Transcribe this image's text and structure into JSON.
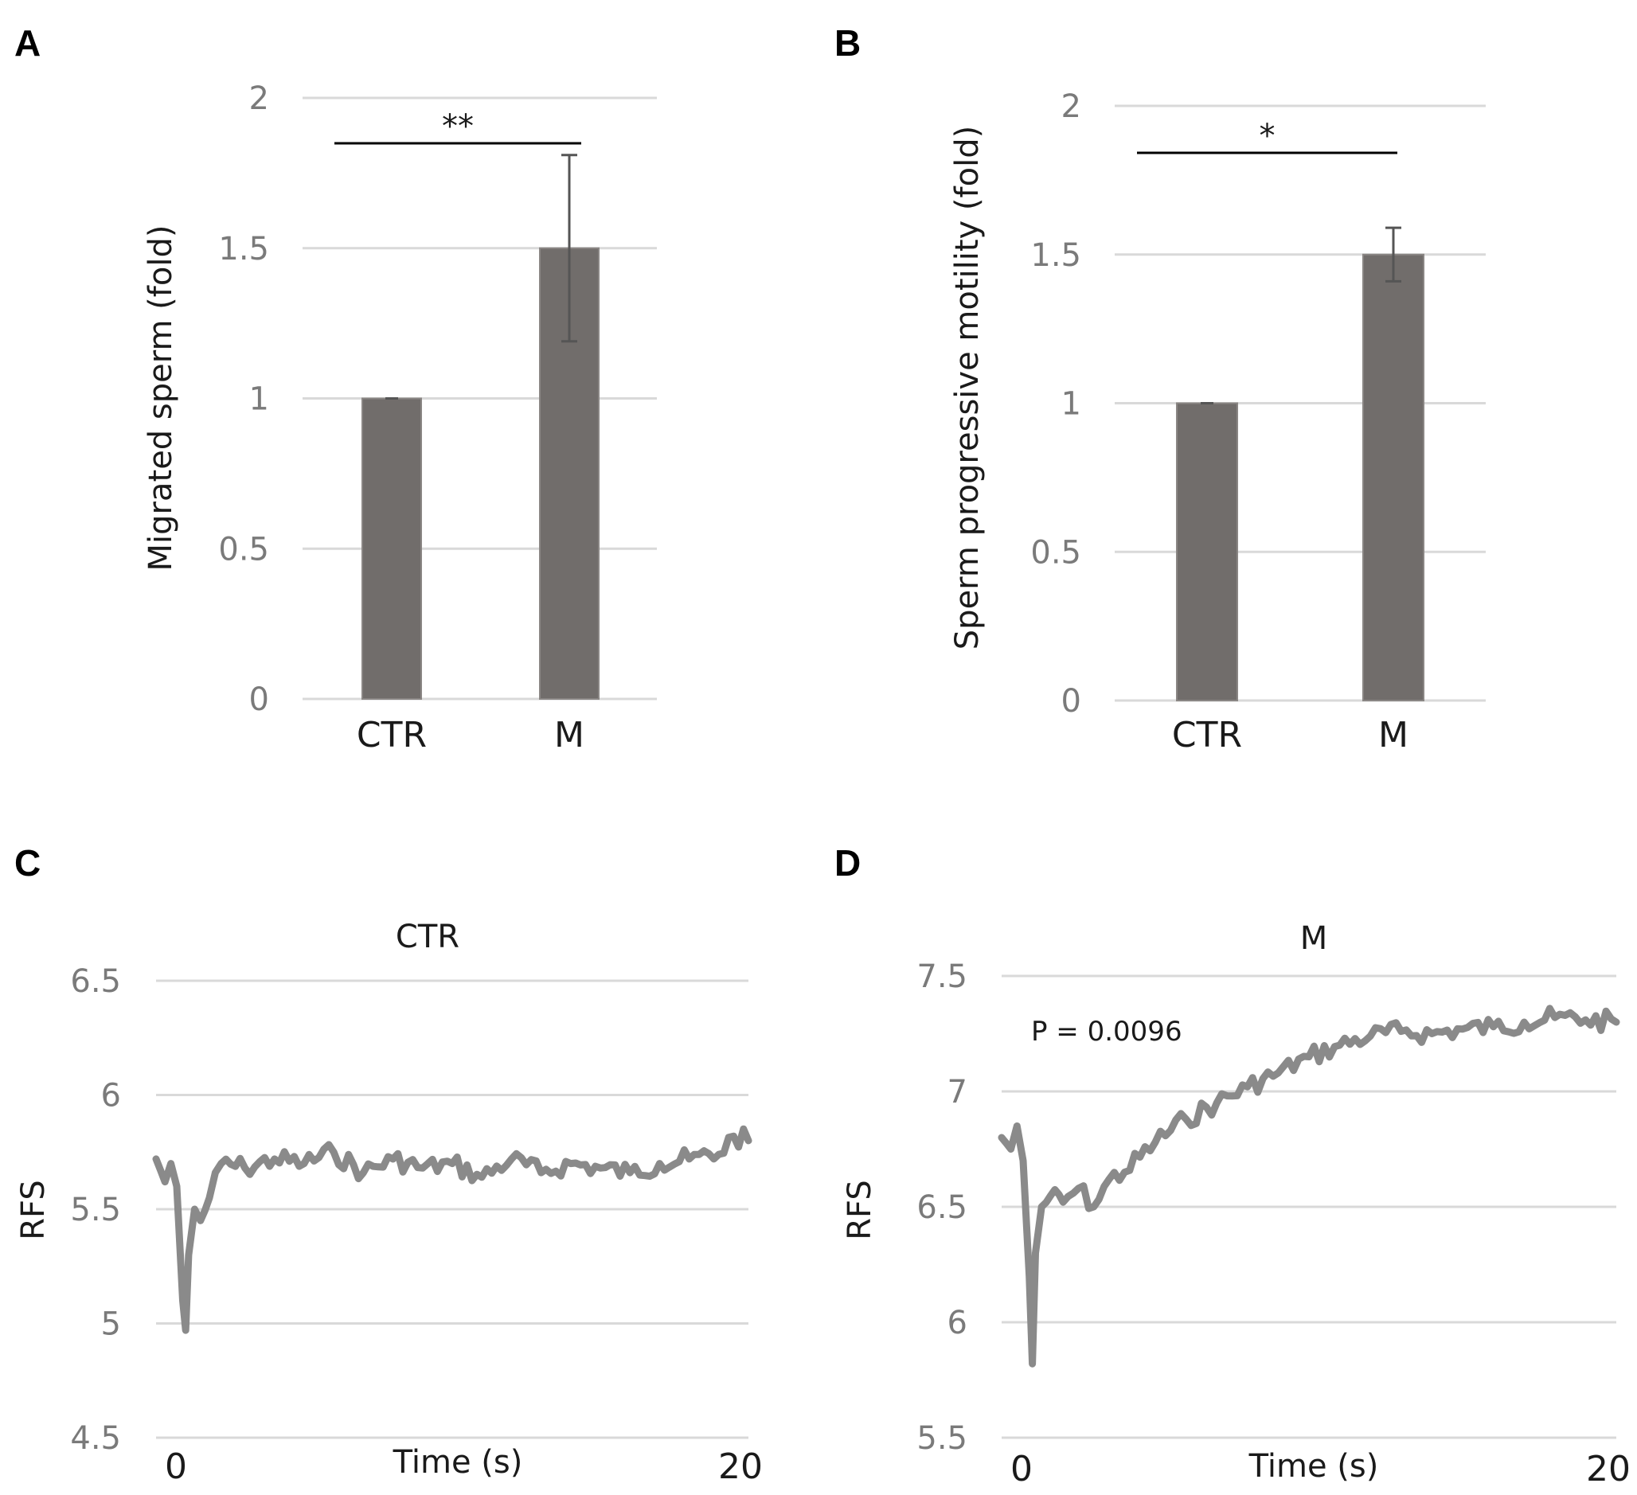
{
  "chart_data": [
    {
      "panel": "A",
      "type": "bar",
      "categories": [
        "CTR",
        "M"
      ],
      "values": [
        1.0,
        1.5
      ],
      "errors": [
        0.0,
        0.31
      ],
      "ylabel": "Migrated sperm (fold)",
      "ylim": [
        0,
        2
      ],
      "yticks": [
        "0",
        "0.5",
        "1",
        "1.5",
        "2"
      ],
      "significance": "**",
      "grid": true,
      "colors": {
        "bar": "#716d6b",
        "error": "#555555",
        "grid": "#d9d9d9"
      }
    },
    {
      "panel": "B",
      "type": "bar",
      "categories": [
        "CTR",
        "M"
      ],
      "values": [
        1.0,
        1.5
      ],
      "errors": [
        0.0,
        0.09
      ],
      "ylabel": "Sperm progressive motility (fold)",
      "ylim": [
        0,
        2
      ],
      "yticks": [
        "0",
        "0.5",
        "1",
        "1.5",
        "2"
      ],
      "significance": "*",
      "grid": true,
      "colors": {
        "bar": "#716d6b",
        "error": "#555555",
        "grid": "#d9d9d9"
      }
    },
    {
      "panel": "C",
      "type": "line",
      "title": "CTR",
      "xlabel": "Time (s)",
      "ylabel": "RFS",
      "xlim": [
        0,
        20
      ],
      "ylim": [
        4.5,
        6.5
      ],
      "yticks": [
        "4.5",
        "5",
        "5.5",
        "6",
        "6.5"
      ],
      "xticks": [
        "0",
        "20"
      ],
      "x": [
        0,
        0.3,
        0.5,
        0.7,
        0.9,
        1.0,
        1.1,
        1.3,
        1.5,
        1.8,
        2.2,
        3,
        4,
        5,
        6,
        7,
        8,
        9,
        10,
        11,
        12,
        13,
        14,
        15,
        16,
        17,
        18,
        19,
        19.5,
        20
      ],
      "y": [
        5.72,
        5.62,
        5.7,
        5.6,
        5.1,
        4.97,
        5.3,
        5.5,
        5.45,
        5.55,
        5.7,
        5.68,
        5.72,
        5.7,
        5.75,
        5.66,
        5.72,
        5.68,
        5.7,
        5.64,
        5.72,
        5.66,
        5.7,
        5.68,
        5.66,
        5.7,
        5.72,
        5.74,
        5.82,
        5.8
      ],
      "grid": true,
      "colors": {
        "line": "#8a8a8a",
        "grid": "#d9d9d9"
      }
    },
    {
      "panel": "D",
      "type": "line",
      "title": "M",
      "xlabel": "Time (s)",
      "ylabel": "RFS",
      "xlim": [
        0,
        20
      ],
      "ylim": [
        5.5,
        7.5
      ],
      "yticks": [
        "5.5",
        "6",
        "6.5",
        "7",
        "7.5"
      ],
      "xticks": [
        "0",
        "20"
      ],
      "annotation": "P = 0.0096",
      "x": [
        0,
        0.3,
        0.5,
        0.7,
        0.9,
        1.0,
        1.1,
        1.3,
        1.6,
        2,
        2.5,
        3,
        3.5,
        4,
        5,
        6,
        7,
        8,
        9,
        10,
        11,
        12,
        13,
        14,
        15,
        16,
        17,
        18,
        19,
        20
      ],
      "y": [
        6.8,
        6.75,
        6.85,
        6.7,
        6.2,
        5.82,
        6.3,
        6.5,
        6.55,
        6.52,
        6.58,
        6.5,
        6.62,
        6.65,
        6.78,
        6.88,
        6.95,
        7.02,
        7.08,
        7.15,
        7.2,
        7.24,
        7.26,
        7.25,
        7.27,
        7.28,
        7.3,
        7.32,
        7.31,
        7.3
      ],
      "grid": true,
      "colors": {
        "line": "#8a8a8a",
        "grid": "#d9d9d9"
      }
    }
  ],
  "panel_labels": [
    "A",
    "B",
    "C",
    "D"
  ]
}
